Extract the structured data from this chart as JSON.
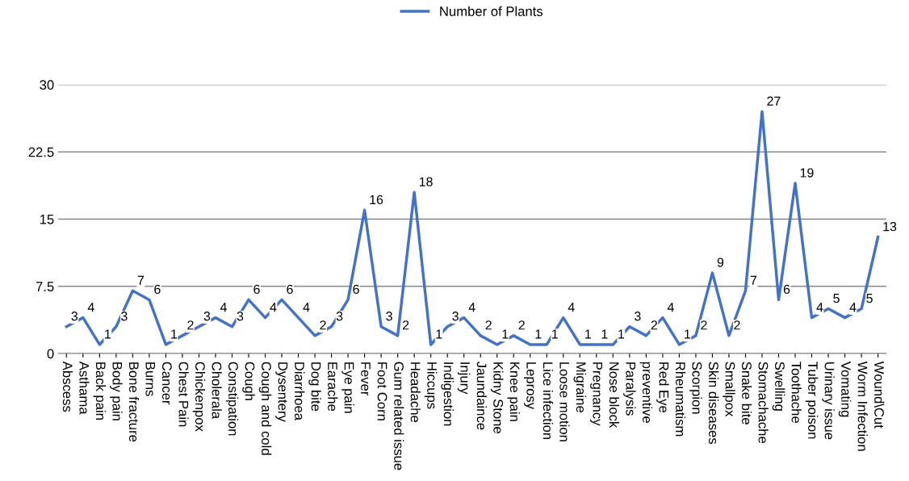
{
  "chart_data": {
    "type": "line",
    "categories": [
      "Abscess",
      "Asthama",
      "Back pain",
      "Body pain",
      "Bone fracture",
      "Burns",
      "Cancer",
      "Chest Pain",
      "Chickenpox",
      "Cholerala",
      "Constipation",
      "Cough",
      "Cough and cold",
      "Dysentery",
      "Diarrhoea",
      "Dog bite",
      "Earache",
      "Eye pain",
      "Fever",
      "Foot Corn",
      "Gum related issue",
      "Headache",
      "Hiccups",
      "Indigestion",
      "Injury",
      "Jaundaince",
      "Kidny Stone",
      "Knee pain",
      "Leprosy",
      "Lice infection",
      "Loose motion",
      "Migraine",
      "Pregnancy",
      "Nose block",
      "Paralysis",
      "preventive",
      "Red Eye",
      "Rheumatism",
      "Scorpion",
      "Skin diseases",
      "Smallpox",
      "Snake bite",
      "Stomachache",
      "Swelling",
      "Toothache",
      "Tuber poison",
      "Urinary issue",
      "Vomating",
      "Worm Infection",
      "Wound\\Cut"
    ],
    "series": [
      {
        "name": "Number of Plants",
        "color": "#4472c4",
        "values": [
          3,
          4,
          1,
          3,
          7,
          6,
          1,
          2,
          3,
          4,
          3,
          6,
          4,
          6,
          4,
          2,
          3,
          6,
          16,
          3,
          2,
          18,
          1,
          3,
          4,
          2,
          1,
          2,
          1,
          1,
          4,
          1,
          1,
          1,
          3,
          2,
          4,
          1,
          2,
          9,
          2,
          7,
          27,
          6,
          19,
          4,
          5,
          4,
          5,
          13
        ]
      }
    ],
    "ylim": [
      0,
      30
    ],
    "yticks": [
      0,
      7.5,
      15,
      22.5,
      30
    ],
    "grid": "y",
    "legend": "top",
    "data_labels": true,
    "marker": "none",
    "line_style": "solid"
  }
}
